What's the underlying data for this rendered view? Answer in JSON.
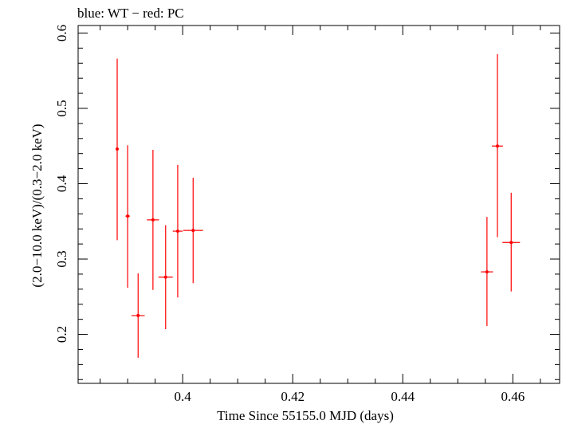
{
  "header": {
    "text": "blue: WT − red: PC"
  },
  "chart_data": {
    "type": "scatter",
    "title": "blue: WT − red: PC",
    "xlabel": "Time Since 55155.0 MJD (days)",
    "ylabel": "(2.0−10.0 keV)/(0.3−2.0 keV)",
    "xlim": [
      0.381,
      0.4685
    ],
    "ylim": [
      0.135,
      0.61
    ],
    "x_ticks": [
      0.4,
      0.42,
      0.44,
      0.46
    ],
    "x_tick_labels": [
      "0.4",
      "0.42",
      "0.44",
      "0.46"
    ],
    "y_ticks": [
      0.2,
      0.3,
      0.4,
      0.5,
      0.6
    ],
    "y_tick_labels": [
      "0.2",
      "0.3",
      "0.4",
      "0.5",
      "0.6"
    ],
    "grid": false,
    "series": [
      {
        "name": "PC",
        "color": "#ff0000",
        "points": [
          {
            "x": 0.3881,
            "xerr": 0.0001,
            "y": 0.446,
            "ylo": 0.325,
            "yhi": 0.566
          },
          {
            "x": 0.39,
            "xerr": 0.0004,
            "y": 0.357,
            "ylo": 0.262,
            "yhi": 0.451
          },
          {
            "x": 0.3919,
            "xerr": 0.0012,
            "y": 0.225,
            "ylo": 0.169,
            "yhi": 0.281
          },
          {
            "x": 0.3946,
            "xerr": 0.0011,
            "y": 0.352,
            "ylo": 0.259,
            "yhi": 0.445
          },
          {
            "x": 0.3969,
            "xerr": 0.0013,
            "y": 0.276,
            "ylo": 0.207,
            "yhi": 0.345
          },
          {
            "x": 0.3991,
            "xerr": 0.0009,
            "y": 0.337,
            "ylo": 0.249,
            "yhi": 0.425
          },
          {
            "x": 0.4019,
            "xerr": 0.0018,
            "y": 0.338,
            "ylo": 0.268,
            "yhi": 0.408
          },
          {
            "x": 0.4553,
            "xerr": 0.0011,
            "y": 0.283,
            "ylo": 0.211,
            "yhi": 0.356
          },
          {
            "x": 0.4572,
            "xerr": 0.001,
            "y": 0.45,
            "ylo": 0.329,
            "yhi": 0.572
          },
          {
            "x": 0.4597,
            "xerr": 0.0016,
            "y": 0.322,
            "ylo": 0.257,
            "yhi": 0.388
          }
        ]
      }
    ]
  }
}
